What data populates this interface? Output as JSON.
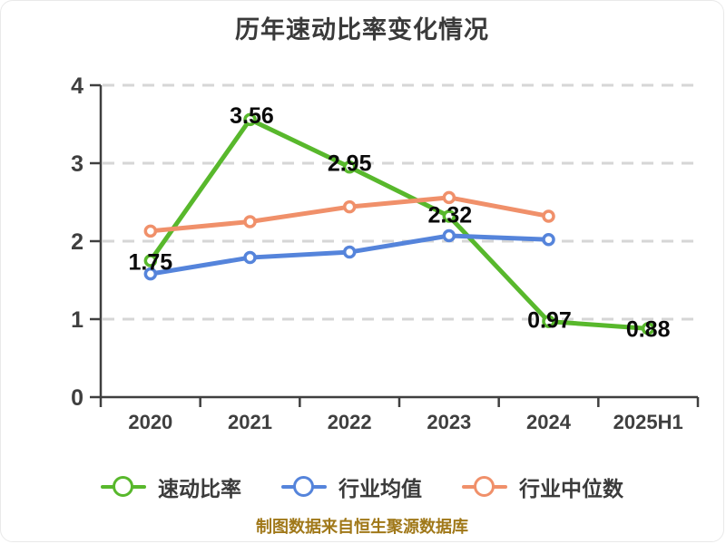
{
  "title": "历年速动比率变化情况",
  "footer": "制图数据来自恒生聚源数据库",
  "colors": {
    "quick_ratio": "#58b82c",
    "industry_avg": "#5584db",
    "industry_median": "#f0906a",
    "axis": "#3f3f3f",
    "grid": "#d6d6d6",
    "tick_label": "#3f3f3f",
    "data_label": "#0a0a0a",
    "footer_text": "#a07819",
    "marker_fill": "#ffffff",
    "background": "#ffffff"
  },
  "chart_data": {
    "type": "line",
    "title": "历年速动比率变化情况",
    "categories": [
      "2020",
      "2021",
      "2022",
      "2023",
      "2024",
      "2025H1"
    ],
    "series": [
      {
        "name": "速动比率",
        "color_key": "quick_ratio",
        "values": [
          1.75,
          3.56,
          2.95,
          2.32,
          0.97,
          0.88
        ],
        "data_labels": [
          "1.75",
          "3.56",
          "2.95",
          "2.32",
          "0.97",
          "0.88"
        ]
      },
      {
        "name": "行业均值",
        "color_key": "industry_avg",
        "values": [
          1.58,
          1.79,
          1.86,
          2.07,
          2.02,
          null
        ],
        "data_labels": []
      },
      {
        "name": "行业中位数",
        "color_key": "industry_median",
        "values": [
          2.13,
          2.25,
          2.44,
          2.56,
          2.32,
          null
        ],
        "data_labels": []
      }
    ],
    "xlabel": "",
    "ylabel": "",
    "ylim": [
      0,
      4
    ],
    "yticks": [
      0,
      1,
      2,
      3,
      4
    ],
    "grid": "horizontal-dashed",
    "legend_position": "bottom",
    "legend": [
      "速动比率",
      "行业均值",
      "行业中位数"
    ]
  }
}
